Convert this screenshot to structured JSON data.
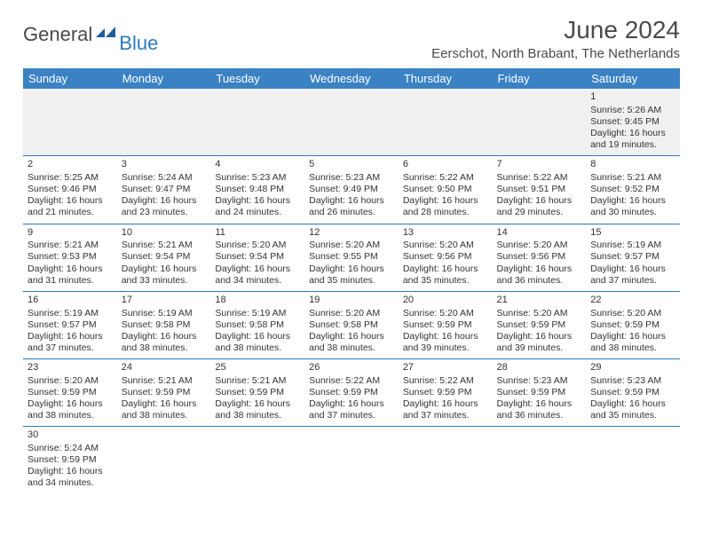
{
  "logo": {
    "general": "General",
    "blue": "Blue"
  },
  "title": "June 2024",
  "location": "Eerschot, North Brabant, The Netherlands",
  "colors": {
    "header_bg": "#3b82c4",
    "header_text": "#ffffff",
    "rule": "#2b7bbf",
    "text": "#333333",
    "logo_gray": "#4a4a4a",
    "logo_blue": "#2b7bbf",
    "first_row_bg": "#f0f0f0"
  },
  "weekdays": [
    "Sunday",
    "Monday",
    "Tuesday",
    "Wednesday",
    "Thursday",
    "Friday",
    "Saturday"
  ],
  "days": [
    {
      "n": 1,
      "sunrise": "5:26 AM",
      "sunset": "9:45 PM",
      "dlh": 16,
      "dlm": 19
    },
    {
      "n": 2,
      "sunrise": "5:25 AM",
      "sunset": "9:46 PM",
      "dlh": 16,
      "dlm": 21
    },
    {
      "n": 3,
      "sunrise": "5:24 AM",
      "sunset": "9:47 PM",
      "dlh": 16,
      "dlm": 23
    },
    {
      "n": 4,
      "sunrise": "5:23 AM",
      "sunset": "9:48 PM",
      "dlh": 16,
      "dlm": 24
    },
    {
      "n": 5,
      "sunrise": "5:23 AM",
      "sunset": "9:49 PM",
      "dlh": 16,
      "dlm": 26
    },
    {
      "n": 6,
      "sunrise": "5:22 AM",
      "sunset": "9:50 PM",
      "dlh": 16,
      "dlm": 28
    },
    {
      "n": 7,
      "sunrise": "5:22 AM",
      "sunset": "9:51 PM",
      "dlh": 16,
      "dlm": 29
    },
    {
      "n": 8,
      "sunrise": "5:21 AM",
      "sunset": "9:52 PM",
      "dlh": 16,
      "dlm": 30
    },
    {
      "n": 9,
      "sunrise": "5:21 AM",
      "sunset": "9:53 PM",
      "dlh": 16,
      "dlm": 31
    },
    {
      "n": 10,
      "sunrise": "5:21 AM",
      "sunset": "9:54 PM",
      "dlh": 16,
      "dlm": 33
    },
    {
      "n": 11,
      "sunrise": "5:20 AM",
      "sunset": "9:54 PM",
      "dlh": 16,
      "dlm": 34
    },
    {
      "n": 12,
      "sunrise": "5:20 AM",
      "sunset": "9:55 PM",
      "dlh": 16,
      "dlm": 35
    },
    {
      "n": 13,
      "sunrise": "5:20 AM",
      "sunset": "9:56 PM",
      "dlh": 16,
      "dlm": 35
    },
    {
      "n": 14,
      "sunrise": "5:20 AM",
      "sunset": "9:56 PM",
      "dlh": 16,
      "dlm": 36
    },
    {
      "n": 15,
      "sunrise": "5:19 AM",
      "sunset": "9:57 PM",
      "dlh": 16,
      "dlm": 37
    },
    {
      "n": 16,
      "sunrise": "5:19 AM",
      "sunset": "9:57 PM",
      "dlh": 16,
      "dlm": 37
    },
    {
      "n": 17,
      "sunrise": "5:19 AM",
      "sunset": "9:58 PM",
      "dlh": 16,
      "dlm": 38
    },
    {
      "n": 18,
      "sunrise": "5:19 AM",
      "sunset": "9:58 PM",
      "dlh": 16,
      "dlm": 38
    },
    {
      "n": 19,
      "sunrise": "5:20 AM",
      "sunset": "9:58 PM",
      "dlh": 16,
      "dlm": 38
    },
    {
      "n": 20,
      "sunrise": "5:20 AM",
      "sunset": "9:59 PM",
      "dlh": 16,
      "dlm": 39
    },
    {
      "n": 21,
      "sunrise": "5:20 AM",
      "sunset": "9:59 PM",
      "dlh": 16,
      "dlm": 39
    },
    {
      "n": 22,
      "sunrise": "5:20 AM",
      "sunset": "9:59 PM",
      "dlh": 16,
      "dlm": 38
    },
    {
      "n": 23,
      "sunrise": "5:20 AM",
      "sunset": "9:59 PM",
      "dlh": 16,
      "dlm": 38
    },
    {
      "n": 24,
      "sunrise": "5:21 AM",
      "sunset": "9:59 PM",
      "dlh": 16,
      "dlm": 38
    },
    {
      "n": 25,
      "sunrise": "5:21 AM",
      "sunset": "9:59 PM",
      "dlh": 16,
      "dlm": 38
    },
    {
      "n": 26,
      "sunrise": "5:22 AM",
      "sunset": "9:59 PM",
      "dlh": 16,
      "dlm": 37
    },
    {
      "n": 27,
      "sunrise": "5:22 AM",
      "sunset": "9:59 PM",
      "dlh": 16,
      "dlm": 37
    },
    {
      "n": 28,
      "sunrise": "5:23 AM",
      "sunset": "9:59 PM",
      "dlh": 16,
      "dlm": 36
    },
    {
      "n": 29,
      "sunrise": "5:23 AM",
      "sunset": "9:59 PM",
      "dlh": 16,
      "dlm": 35
    },
    {
      "n": 30,
      "sunrise": "5:24 AM",
      "sunset": "9:59 PM",
      "dlh": 16,
      "dlm": 34
    }
  ],
  "first_weekday_index": 6,
  "labels": {
    "sunrise": "Sunrise:",
    "sunset": "Sunset:",
    "daylight": "Daylight:",
    "hours": "hours",
    "and": "and",
    "minutes": "minutes."
  }
}
